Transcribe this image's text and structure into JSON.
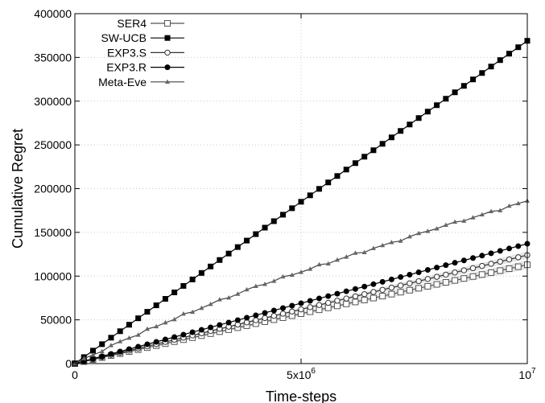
{
  "chart_data": {
    "type": "line",
    "xlabel": "Time-steps",
    "ylabel": "Cumulative Regret",
    "xlim": [
      0,
      10000000
    ],
    "ylim": [
      0,
      400000
    ],
    "grid": true,
    "legend_position": "top-left",
    "x_ticks": [
      {
        "value": 0,
        "base": "0",
        "exp": ""
      },
      {
        "value": 5000000,
        "base": "5x10",
        "exp": "6"
      },
      {
        "value": 10000000,
        "base": "10",
        "exp": "7"
      }
    ],
    "y_ticks": [
      {
        "value": 0,
        "label": "0"
      },
      {
        "value": 50000,
        "label": "50000"
      },
      {
        "value": 100000,
        "label": "100000"
      },
      {
        "value": 150000,
        "label": "150000"
      },
      {
        "value": 200000,
        "label": "200000"
      },
      {
        "value": 250000,
        "label": "250000"
      },
      {
        "value": 300000,
        "label": "300000"
      },
      {
        "value": 350000,
        "label": "350000"
      },
      {
        "value": 400000,
        "label": "400000"
      }
    ],
    "series": [
      {
        "name": "SER4",
        "marker": "square-open",
        "slope": 0.0113,
        "band": 5000,
        "shaded": true,
        "noise": 0,
        "anchors": [
          [
            0,
            0
          ],
          [
            5000000,
            57000
          ],
          [
            10000000,
            113000
          ]
        ]
      },
      {
        "name": "SW-UCB",
        "marker": "square-filled",
        "slope": 0.0369,
        "band": 0,
        "shaded": false,
        "noise": 0,
        "anchors": [
          [
            0,
            0
          ],
          [
            5000000,
            185000
          ],
          [
            10000000,
            369000
          ]
        ]
      },
      {
        "name": "EXP3.S",
        "marker": "circle-open",
        "slope": 0.0124,
        "band": 4000,
        "shaded": true,
        "noise": 0,
        "anchors": [
          [
            0,
            0
          ],
          [
            5000000,
            62000
          ],
          [
            10000000,
            124000
          ]
        ]
      },
      {
        "name": "EXP3.R",
        "marker": "circle-filled",
        "slope": 0.0137,
        "band": 0,
        "shaded": false,
        "noise": 0,
        "anchors": [
          [
            0,
            0
          ],
          [
            5000000,
            69000
          ],
          [
            10000000,
            137000
          ]
        ]
      },
      {
        "name": "Meta-Eve",
        "marker": "triangle",
        "slope": 0.0186,
        "band": 0,
        "shaded": false,
        "noise": 1,
        "anchors": [
          [
            0,
            0
          ],
          [
            1000000,
            25000
          ],
          [
            2000000,
            47000
          ],
          [
            3000000,
            68000
          ],
          [
            4000000,
            88000
          ],
          [
            5000000,
            105000
          ],
          [
            6000000,
            122000
          ],
          [
            7000000,
            138000
          ],
          [
            8000000,
            155000
          ],
          [
            9000000,
            170000
          ],
          [
            10000000,
            186000
          ]
        ]
      }
    ]
  }
}
